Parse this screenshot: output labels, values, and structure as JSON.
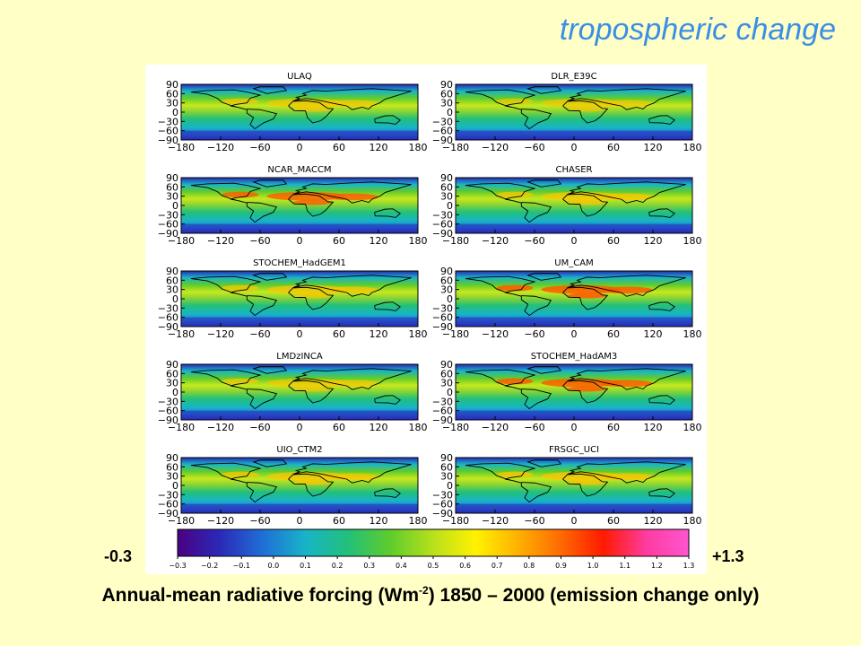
{
  "slide": {
    "title": "tropospheric change",
    "caption_pre": "Annual-mean radiative forcing (Wm",
    "caption_sup": "-2",
    "caption_post": ") 1850 – 2000 (emission change only)",
    "colorbar_min_label": "-0.3",
    "colorbar_max_label": "+1.3"
  },
  "chart_data": {
    "type": "heatmap",
    "layout": "5 rows x 2 columns of global maps",
    "panels": [
      {
        "title": "ULAQ",
        "intensity": 0.55
      },
      {
        "title": "DLR_E39C",
        "intensity": 0.45
      },
      {
        "title": "NCAR_MACCM",
        "intensity": 0.75
      },
      {
        "title": "CHASER",
        "intensity": 0.6
      },
      {
        "title": "STOCHEM_HadGEM1",
        "intensity": 0.55
      },
      {
        "title": "UM_CAM",
        "intensity": 0.85
      },
      {
        "title": "LMDzINCA",
        "intensity": 0.5
      },
      {
        "title": "STOCHEM_HadAM3",
        "intensity": 0.8
      },
      {
        "title": "UIO_CTM2",
        "intensity": 0.6
      },
      {
        "title": "FRSGC_UCI",
        "intensity": 0.65
      }
    ],
    "x_ticks": [
      "−180",
      "−120",
      "−60",
      "0",
      "60",
      "120",
      "180"
    ],
    "y_ticks": [
      "90",
      "60",
      "30",
      "0",
      "−30",
      "−60",
      "−90"
    ],
    "xlim": [
      -180,
      180
    ],
    "ylim": [
      -90,
      90
    ],
    "colorbar": {
      "ticks": [
        "−0.3",
        "−0.2",
        "−0.1",
        "0.0",
        "0.1",
        "0.2",
        "0.3",
        "0.4",
        "0.5",
        "0.6",
        "0.7",
        "0.8",
        "0.9",
        "1.0",
        "1.1",
        "1.2",
        "1.3"
      ],
      "range": [
        -0.3,
        1.3
      ],
      "colors": [
        "#4b0082",
        "#2a2ab8",
        "#1f6fd6",
        "#18b4c8",
        "#22c07a",
        "#5fcc2c",
        "#b8e01c",
        "#fff200",
        "#ffb000",
        "#ff6a00",
        "#ff1a00",
        "#ff3ca0",
        "#ff55d0"
      ]
    }
  }
}
